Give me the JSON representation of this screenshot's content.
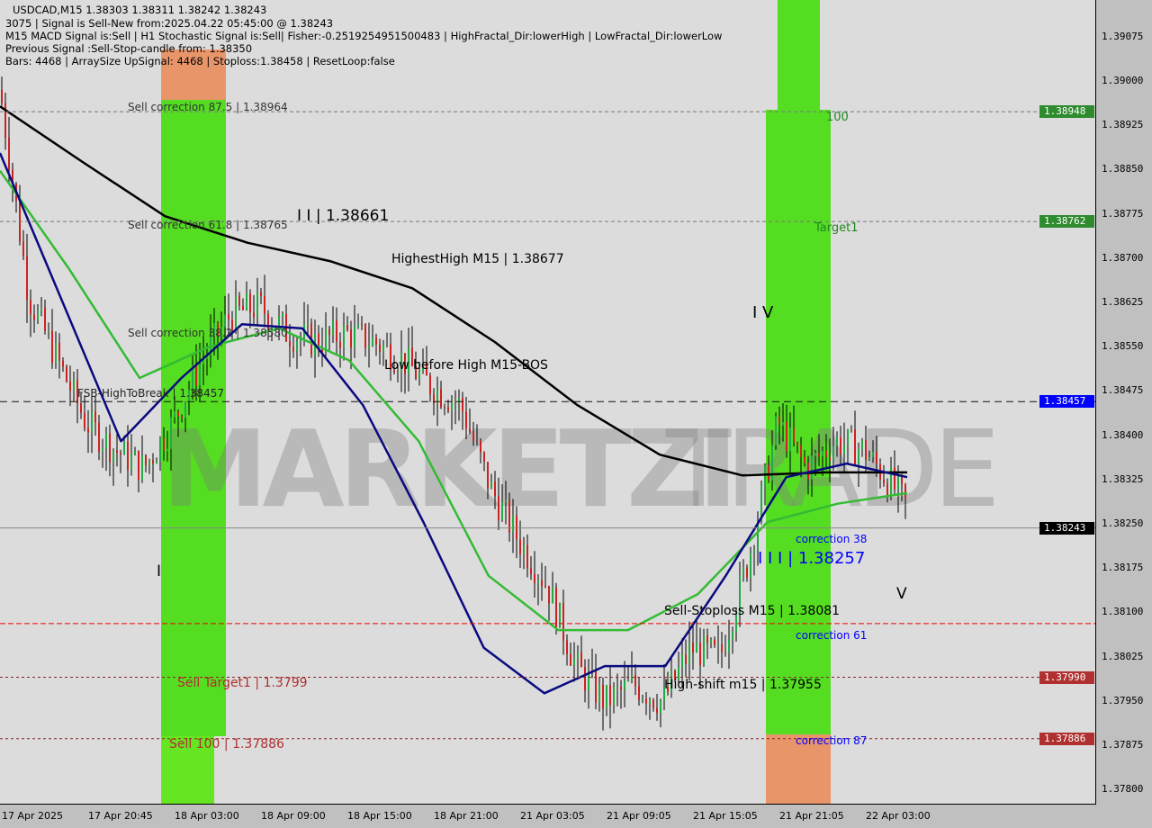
{
  "header": {
    "line1": "USDCAD,M15  1.38303 1.38311 1.38242 1.38243",
    "line2": "3075 | Signal is Sell-New from:2025.04.22 05:45:00 @ 1.38243",
    "line3": "M15 MACD Signal is:Sell | H1 Stochastic Signal is:Sell| Fisher:-0.2519254951500483 | HighFractal_Dir:lowerHigh | LowFractal_Dir:lowerLow",
    "line4": "Previous Signal :Sell-Stop-candle from: 1.38350",
    "line5": "Bars: 4468 | ArraySize UpSignal: 4468 | Stoploss:1.38458 | ResetLoop:false"
  },
  "watermark": {
    "left": "MARKETZI",
    "right": "TRADE"
  },
  "labels": {
    "sell_corr_875": "Sell correction 87.5 | 1.38964",
    "sell_corr_618": "Sell correction 61.8 | 1.38765",
    "sell_corr_382": "Sell correction 38.2 | 1.38580",
    "fsb": "FSB-HighToBreak | 1.38457",
    "wave2": "I I | 1.38661",
    "highest_high": "HighestHigh   M15 | 1.38677",
    "low_before_high": "Low before High   M15-BOS",
    "wave4": "I V",
    "wave1": "I",
    "wave5": "V",
    "wave3": "I I I | 1.38257",
    "sell_stoploss": "Sell-Stoploss M15 | 1.38081",
    "high_shift": "High-shift m15 | 1.37955",
    "sell_target1": "Sell Target1 | 1.3799",
    "sell_100": "Sell 100 | 1.37886",
    "corr38": "correction 38",
    "corr61": "correction 61",
    "corr87": "correction 87",
    "l100": "100",
    "target1": "Target1"
  },
  "colors": {
    "bull": "#22aa44",
    "bear": "#cc2222",
    "ma_long": "#000000",
    "ma_mid": "#33bb33",
    "ma_fast": "#0a0a80",
    "zone_green": "#55dd22",
    "zone_orange": "#e8956a",
    "sell_red": "#b03030",
    "tag_green": "#2e8b2e",
    "tag_blue": "#0000ff"
  },
  "chart_data": {
    "type": "candlestick",
    "symbol": "USDCAD",
    "timeframe": "M15",
    "ylim": [
      1.3776,
      1.3912
    ],
    "y_ticks": [
      "1.39075",
      "1.39000",
      "1.38925",
      "1.38850",
      "1.38775",
      "1.38700",
      "1.38625",
      "1.38550",
      "1.38475",
      "1.38400",
      "1.38325",
      "1.38250",
      "1.38175",
      "1.38100",
      "1.38025",
      "1.37950",
      "1.37875",
      "1.37800"
    ],
    "x_ticks": [
      "17 Apr 2025",
      "17 Apr 20:45",
      "18 Apr 03:00",
      "18 Apr 09:00",
      "18 Apr 15:00",
      "18 Apr 21:00",
      "21 Apr 03:05",
      "21 Apr 09:05",
      "21 Apr 15:05",
      "21 Apr 21:05",
      "22 Apr 03:00"
    ],
    "close_path": [
      1.38985,
      1.38634,
      1.38527,
      1.38421,
      1.38375,
      1.38344,
      1.38421,
      1.38527,
      1.38604,
      1.38619,
      1.38573,
      1.38558,
      1.38573,
      1.38558,
      1.38527,
      1.38482,
      1.38451,
      1.38314,
      1.38223,
      1.38146,
      1.38009,
      1.37948,
      1.37979,
      1.37948,
      1.38039,
      1.38024,
      1.38192,
      1.38421,
      1.38344,
      1.3839,
      1.38375,
      1.38314,
      1.38243
    ],
    "ma_long": [
      1.38957,
      1.38863,
      1.38771,
      1.38726,
      1.38695,
      1.38649,
      1.38558,
      1.38451,
      1.38367,
      1.38332,
      1.38337,
      1.38337
    ],
    "ma_mid": [
      1.38848,
      1.3868,
      1.38497,
      1.3855,
      1.38581,
      1.38527,
      1.3839,
      1.38162,
      1.3807,
      1.3807,
      1.38131,
      1.38253,
      1.38284,
      1.38302
    ],
    "ma_fast": [
      1.38878,
      1.38634,
      1.3839,
      1.38497,
      1.38588,
      1.38581,
      1.38451,
      1.38253,
      1.3804,
      1.37963,
      1.38009,
      1.38009,
      1.38162,
      1.38329,
      1.38352,
      1.38329
    ],
    "levels": [
      {
        "price": 1.38948,
        "tag": "1.38948",
        "style": "gray-dashed",
        "tagcolor": "#2e8b2e"
      },
      {
        "price": 1.38762,
        "tag": "1.38762",
        "style": "gray-dashed",
        "tagcolor": "#2e8b2e"
      },
      {
        "price": 1.38457,
        "tag": "1.38457",
        "style": "black-dashed",
        "tagcolor": "#0000ff"
      },
      {
        "price": 1.38243,
        "tag": "1.38243",
        "style": "gray-solid",
        "tagcolor": "#000000"
      },
      {
        "price": 1.38081,
        "tag": "",
        "style": "red-dashed",
        "tagcolor": ""
      },
      {
        "price": 1.3799,
        "tag": "1.37990",
        "style": "darkred-dotted",
        "tagcolor": "#b03030"
      },
      {
        "price": 1.37886,
        "tag": "1.37886",
        "style": "darkred-dotted",
        "tagcolor": "#b03030"
      }
    ]
  }
}
